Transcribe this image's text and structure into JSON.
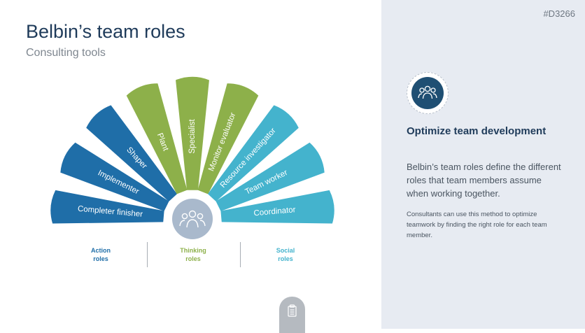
{
  "header": {
    "title": "Belbin’s team roles",
    "subtitle": "Consulting tools",
    "code": "#D3266"
  },
  "colors": {
    "action": "#1f6ea8",
    "thinking": "#8db04a",
    "social": "#44b3cd",
    "center": "#a9b9cc",
    "badge": "#1f4f73"
  },
  "roles": [
    {
      "label": "Completer finisher",
      "group": "action"
    },
    {
      "label": "Implementer",
      "group": "action"
    },
    {
      "label": "Shaper",
      "group": "action"
    },
    {
      "label": "Plant",
      "group": "thinking"
    },
    {
      "label": "Specialist",
      "group": "thinking"
    },
    {
      "label": "Monitor evaluator",
      "group": "thinking"
    },
    {
      "label": "Resource investigator",
      "group": "social"
    },
    {
      "label": "Team worker",
      "group": "social"
    },
    {
      "label": "Coordinator",
      "group": "social"
    }
  ],
  "groups": {
    "action": "Action\nroles",
    "thinking": "Thinking\nroles",
    "social": "Social\nroles"
  },
  "side": {
    "icon": "team-icon",
    "heading": "Optimize team development",
    "body": "Belbin’s team roles define the different roles that team members assume when working together.",
    "small": "Consultants can use this method to optimize teamwork by finding the right role for each team member."
  },
  "footer_icon": "clipboard-icon"
}
